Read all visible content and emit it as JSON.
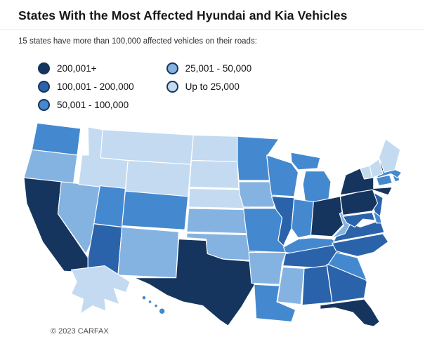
{
  "page": {
    "footer": "© 2023 CARFAX"
  },
  "chart_data": {
    "type": "choropleth_map",
    "title": "States With the Most Affected Hyundai and Kia Vehicles",
    "subtitle": "15 states have more than 100,000 affected vehicles on their roads:",
    "unit": "affected Hyundai and Kia vehicles",
    "legend_position": "top-left, two columns",
    "legend": [
      {
        "label": "200,001+",
        "color": "#15355E"
      },
      {
        "label": "100,001 - 200,000",
        "color": "#2B63AB"
      },
      {
        "label": "50,001 - 100,000",
        "color": "#4489CF"
      },
      {
        "label": "25,001 - 50,000",
        "color": "#84B3E2"
      },
      {
        "label": "Up to 25,000",
        "color": "#C3DAF1"
      }
    ],
    "states": [
      {
        "code": "AL",
        "name": "Alabama",
        "category": "100,001 - 200,000"
      },
      {
        "code": "AK",
        "name": "Alaska",
        "category": "Up to 25,000"
      },
      {
        "code": "AZ",
        "name": "Arizona",
        "category": "100,001 - 200,000"
      },
      {
        "code": "AR",
        "name": "Arkansas",
        "category": "25,001 - 50,000"
      },
      {
        "code": "CA",
        "name": "California",
        "category": "200,001+"
      },
      {
        "code": "CO",
        "name": "Colorado",
        "category": "50,001 - 100,000"
      },
      {
        "code": "CT",
        "name": "Connecticut",
        "category": "50,001 - 100,000"
      },
      {
        "code": "DE",
        "name": "Delaware",
        "category": "50,001 - 100,000"
      },
      {
        "code": "FL",
        "name": "Florida",
        "category": "200,001+"
      },
      {
        "code": "GA",
        "name": "Georgia",
        "category": "100,001 - 200,000"
      },
      {
        "code": "HI",
        "name": "Hawaii",
        "category": "50,001 - 100,000"
      },
      {
        "code": "ID",
        "name": "Idaho",
        "category": "Up to 25,000"
      },
      {
        "code": "IL",
        "name": "Illinois",
        "category": "100,001 - 200,000"
      },
      {
        "code": "IN",
        "name": "Indiana",
        "category": "50,001 - 100,000"
      },
      {
        "code": "IA",
        "name": "Iowa",
        "category": "25,001 - 50,000"
      },
      {
        "code": "KS",
        "name": "Kansas",
        "category": "25,001 - 50,000"
      },
      {
        "code": "KY",
        "name": "Kentucky",
        "category": "50,001 - 100,000"
      },
      {
        "code": "LA",
        "name": "Louisiana",
        "category": "50,001 - 100,000"
      },
      {
        "code": "ME",
        "name": "Maine",
        "category": "Up to 25,000"
      },
      {
        "code": "MD",
        "name": "Maryland",
        "category": "100,001 - 200,000"
      },
      {
        "code": "MA",
        "name": "Massachusetts",
        "category": "50,001 - 100,000"
      },
      {
        "code": "MI",
        "name": "Michigan",
        "category": "50,001 - 100,000"
      },
      {
        "code": "MN",
        "name": "Minnesota",
        "category": "50,001 - 100,000"
      },
      {
        "code": "MS",
        "name": "Mississippi",
        "category": "25,001 - 50,000"
      },
      {
        "code": "MO",
        "name": "Missouri",
        "category": "50,001 - 100,000"
      },
      {
        "code": "MT",
        "name": "Montana",
        "category": "Up to 25,000"
      },
      {
        "code": "NE",
        "name": "Nebraska",
        "category": "Up to 25,000"
      },
      {
        "code": "NV",
        "name": "Nevada",
        "category": "25,001 - 50,000"
      },
      {
        "code": "NH",
        "name": "New Hampshire",
        "category": "Up to 25,000"
      },
      {
        "code": "NJ",
        "name": "New Jersey",
        "category": "100,001 - 200,000"
      },
      {
        "code": "NM",
        "name": "New Mexico",
        "category": "25,001 - 50,000"
      },
      {
        "code": "NY",
        "name": "New York",
        "category": "200,001+"
      },
      {
        "code": "NC",
        "name": "North Carolina",
        "category": "100,001 - 200,000"
      },
      {
        "code": "ND",
        "name": "North Dakota",
        "category": "Up to 25,000"
      },
      {
        "code": "OH",
        "name": "Ohio",
        "category": "200,001+"
      },
      {
        "code": "OK",
        "name": "Oklahoma",
        "category": "25,001 - 50,000"
      },
      {
        "code": "OR",
        "name": "Oregon",
        "category": "25,001 - 50,000"
      },
      {
        "code": "PA",
        "name": "Pennsylvania",
        "category": "200,001+"
      },
      {
        "code": "RI",
        "name": "Rhode Island",
        "category": "50,001 - 100,000"
      },
      {
        "code": "SC",
        "name": "South Carolina",
        "category": "50,001 - 100,000"
      },
      {
        "code": "SD",
        "name": "South Dakota",
        "category": "Up to 25,000"
      },
      {
        "code": "TN",
        "name": "Tennessee",
        "category": "100,001 - 200,000"
      },
      {
        "code": "TX",
        "name": "Texas",
        "category": "200,001+"
      },
      {
        "code": "UT",
        "name": "Utah",
        "category": "50,001 - 100,000"
      },
      {
        "code": "VT",
        "name": "Vermont",
        "category": "Up to 25,000"
      },
      {
        "code": "VA",
        "name": "Virginia",
        "category": "100,001 - 200,000"
      },
      {
        "code": "WA",
        "name": "Washington",
        "category": "50,001 - 100,000"
      },
      {
        "code": "WV",
        "name": "West Virginia",
        "category": "25,001 - 50,000"
      },
      {
        "code": "WI",
        "name": "Wisconsin",
        "category": "50,001 - 100,000"
      },
      {
        "code": "WY",
        "name": "Wyoming",
        "category": "Up to 25,000"
      }
    ]
  }
}
